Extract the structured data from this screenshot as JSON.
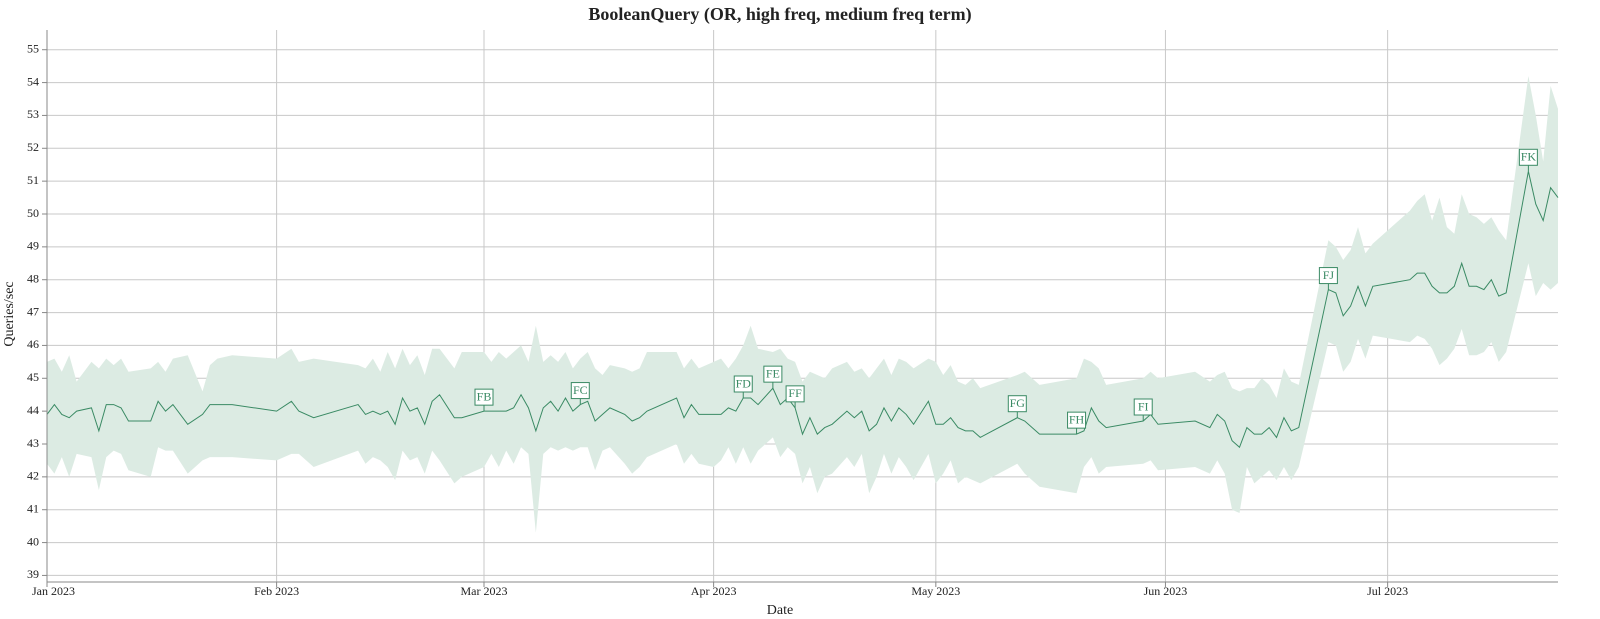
{
  "chart_data": {
    "type": "line",
    "title": "BooleanQuery (OR, high freq, medium freq term)",
    "x_label": "Date",
    "y_label": "Queries/sec",
    "xlim": [
      "2023-01-01",
      "2023-07-24"
    ],
    "xticks": [
      {
        "value": "2023-01-01",
        "label": "Jan 2023"
      },
      {
        "value": "2023-02-01",
        "label": "Feb 2023"
      },
      {
        "value": "2023-03-01",
        "label": "Mar 2023"
      },
      {
        "value": "2023-04-01",
        "label": "Apr 2023"
      },
      {
        "value": "2023-05-01",
        "label": "May 2023"
      },
      {
        "value": "2023-06-01",
        "label": "Jun 2023"
      },
      {
        "value": "2023-07-01",
        "label": "Jul 2023"
      }
    ],
    "ylim": [
      38.8,
      55.6
    ],
    "yticks": [
      39,
      40,
      41,
      42,
      43,
      44,
      45,
      46,
      47,
      48,
      49,
      50,
      51,
      52,
      53,
      54,
      55
    ],
    "grid": true,
    "x": [
      "2023-01-01",
      "2023-01-02",
      "2023-01-03",
      "2023-01-04",
      "2023-01-05",
      "2023-01-07",
      "2023-01-08",
      "2023-01-09",
      "2023-01-10",
      "2023-01-11",
      "2023-01-12",
      "2023-01-15",
      "2023-01-16",
      "2023-01-17",
      "2023-01-18",
      "2023-01-20",
      "2023-01-22",
      "2023-01-23",
      "2023-01-24",
      "2023-01-26",
      "2023-02-01",
      "2023-02-03",
      "2023-02-04",
      "2023-02-06",
      "2023-02-12",
      "2023-02-13",
      "2023-02-14",
      "2023-02-15",
      "2023-02-16",
      "2023-02-17",
      "2023-02-18",
      "2023-02-19",
      "2023-02-20",
      "2023-02-21",
      "2023-02-22",
      "2023-02-23",
      "2023-02-25",
      "2023-02-26",
      "2023-03-01",
      "2023-03-02",
      "2023-03-03",
      "2023-03-04",
      "2023-03-05",
      "2023-03-06",
      "2023-03-07",
      "2023-03-08",
      "2023-03-09",
      "2023-03-10",
      "2023-03-11",
      "2023-03-12",
      "2023-03-13",
      "2023-03-14",
      "2023-03-15",
      "2023-03-16",
      "2023-03-17",
      "2023-03-18",
      "2023-03-20",
      "2023-03-21",
      "2023-03-22",
      "2023-03-23",
      "2023-03-27",
      "2023-03-28",
      "2023-03-29",
      "2023-03-30",
      "2023-04-01",
      "2023-04-02",
      "2023-04-03",
      "2023-04-04",
      "2023-04-05",
      "2023-04-06",
      "2023-04-07",
      "2023-04-09",
      "2023-04-10",
      "2023-04-11",
      "2023-04-12",
      "2023-04-13",
      "2023-04-14",
      "2023-04-15",
      "2023-04-16",
      "2023-04-17",
      "2023-04-19",
      "2023-04-20",
      "2023-04-21",
      "2023-04-22",
      "2023-04-23",
      "2023-04-24",
      "2023-04-25",
      "2023-04-26",
      "2023-04-27",
      "2023-04-28",
      "2023-04-30",
      "2023-05-01",
      "2023-05-02",
      "2023-05-03",
      "2023-05-04",
      "2023-05-05",
      "2023-05-06",
      "2023-05-07",
      "2023-05-12",
      "2023-05-13",
      "2023-05-15",
      "2023-05-20",
      "2023-05-21",
      "2023-05-22",
      "2023-05-23",
      "2023-05-24",
      "2023-05-29",
      "2023-05-30",
      "2023-05-31",
      "2023-06-05",
      "2023-06-07",
      "2023-06-08",
      "2023-06-09",
      "2023-06-10",
      "2023-06-11",
      "2023-06-12",
      "2023-06-13",
      "2023-06-14",
      "2023-06-15",
      "2023-06-16",
      "2023-06-17",
      "2023-06-18",
      "2023-06-19",
      "2023-06-23",
      "2023-06-24",
      "2023-06-25",
      "2023-06-26",
      "2023-06-27",
      "2023-06-28",
      "2023-06-29",
      "2023-07-04",
      "2023-07-05",
      "2023-07-06",
      "2023-07-07",
      "2023-07-08",
      "2023-07-09",
      "2023-07-10",
      "2023-07-11",
      "2023-07-12",
      "2023-07-13",
      "2023-07-14",
      "2023-07-15",
      "2023-07-16",
      "2023-07-17",
      "2023-07-20",
      "2023-07-21",
      "2023-07-22",
      "2023-07-23",
      "2023-07-24"
    ],
    "series": [
      {
        "color": "#3a8a64",
        "band_color": "#dcebe3",
        "values": [
          43.9,
          44.2,
          43.9,
          43.8,
          44.0,
          44.1,
          43.4,
          44.2,
          44.2,
          44.1,
          43.7,
          43.7,
          44.3,
          44.0,
          44.2,
          43.6,
          43.9,
          44.2,
          44.2,
          44.2,
          44.0,
          44.3,
          44.0,
          43.8,
          44.2,
          43.9,
          44.0,
          43.9,
          44.0,
          43.6,
          44.4,
          44.0,
          44.1,
          43.6,
          44.3,
          44.5,
          43.8,
          43.8,
          44.0,
          44.0,
          44.0,
          44.0,
          44.1,
          44.5,
          44.1,
          43.4,
          44.1,
          44.3,
          44.0,
          44.4,
          44.0,
          44.2,
          44.3,
          43.7,
          43.9,
          44.1,
          43.9,
          43.7,
          43.8,
          44.0,
          44.4,
          43.8,
          44.2,
          43.9,
          43.9,
          43.9,
          44.1,
          44.0,
          44.4,
          44.4,
          44.2,
          44.7,
          44.2,
          44.4,
          44.1,
          43.3,
          43.8,
          43.3,
          43.5,
          43.6,
          44.0,
          43.8,
          44.0,
          43.4,
          43.6,
          44.1,
          43.7,
          44.1,
          43.9,
          43.6,
          44.3,
          43.6,
          43.6,
          43.8,
          43.5,
          43.4,
          43.4,
          43.2,
          43.8,
          43.7,
          43.3,
          43.3,
          43.4,
          44.1,
          43.7,
          43.5,
          43.7,
          43.9,
          43.6,
          43.7,
          43.5,
          43.9,
          43.7,
          43.1,
          42.9,
          43.5,
          43.3,
          43.3,
          43.5,
          43.2,
          43.8,
          43.4,
          43.5,
          47.7,
          47.6,
          46.9,
          47.2,
          47.8,
          47.2,
          47.8,
          48.0,
          48.2,
          48.2,
          47.8,
          47.6,
          47.6,
          47.8,
          48.5,
          47.8,
          47.8,
          47.7,
          48.0,
          47.5,
          47.6,
          51.3,
          50.3,
          49.8,
          50.8,
          50.5
        ],
        "lower": [
          42.4,
          42.1,
          42.6,
          42.0,
          42.7,
          42.6,
          41.6,
          42.6,
          42.8,
          42.7,
          42.2,
          42.0,
          42.9,
          42.8,
          42.8,
          42.1,
          42.5,
          42.6,
          42.6,
          42.6,
          42.5,
          42.7,
          42.7,
          42.3,
          42.8,
          42.4,
          42.6,
          42.5,
          42.3,
          41.9,
          42.8,
          42.5,
          42.6,
          42.1,
          42.8,
          42.5,
          41.8,
          42.0,
          42.3,
          42.7,
          42.3,
          42.8,
          42.4,
          42.9,
          42.7,
          40.3,
          42.7,
          42.9,
          42.8,
          42.9,
          42.8,
          42.9,
          42.9,
          42.2,
          42.8,
          42.9,
          42.4,
          42.1,
          42.3,
          42.6,
          43.0,
          42.4,
          42.7,
          42.4,
          42.3,
          42.5,
          42.9,
          42.4,
          42.9,
          42.4,
          42.8,
          43.2,
          42.6,
          42.9,
          42.7,
          41.8,
          42.3,
          41.5,
          42.0,
          42.1,
          42.6,
          42.3,
          42.7,
          41.5,
          42.0,
          42.7,
          42.1,
          42.6,
          42.3,
          41.9,
          42.7,
          41.8,
          42.1,
          42.5,
          41.8,
          42.0,
          41.9,
          41.8,
          42.4,
          42.1,
          41.7,
          41.5,
          42.3,
          42.6,
          42.1,
          42.3,
          42.4,
          42.5,
          42.2,
          42.3,
          42.1,
          42.5,
          42.1,
          41.0,
          40.9,
          42.3,
          41.8,
          42.0,
          42.2,
          41.9,
          42.3,
          41.9,
          42.3,
          46.1,
          46.0,
          45.2,
          45.5,
          46.2,
          45.6,
          46.3,
          46.1,
          46.3,
          46.2,
          45.9,
          45.4,
          45.6,
          45.9,
          46.5,
          45.7,
          45.7,
          45.8,
          46.1,
          45.5,
          45.8,
          48.5,
          47.5,
          47.9,
          47.7,
          47.9
        ],
        "upper": [
          45.5,
          45.6,
          45.2,
          45.7,
          44.9,
          45.5,
          45.3,
          45.6,
          45.4,
          45.6,
          45.2,
          45.3,
          45.5,
          45.2,
          45.6,
          45.7,
          44.6,
          45.4,
          45.6,
          45.7,
          45.6,
          45.9,
          45.5,
          45.6,
          45.4,
          45.3,
          45.6,
          45.2,
          45.8,
          45.3,
          45.9,
          45.4,
          45.7,
          45.1,
          45.9,
          45.9,
          45.3,
          45.8,
          45.8,
          45.5,
          45.8,
          45.6,
          45.8,
          46.0,
          45.5,
          46.6,
          45.5,
          45.7,
          45.5,
          45.8,
          45.3,
          45.6,
          45.8,
          45.3,
          45.1,
          45.4,
          45.3,
          45.2,
          45.3,
          45.8,
          45.8,
          45.3,
          45.6,
          45.3,
          45.5,
          45.6,
          45.3,
          45.6,
          46.0,
          46.6,
          45.9,
          45.8,
          45.9,
          45.6,
          45.5,
          44.9,
          45.2,
          45.1,
          45.0,
          45.3,
          45.5,
          45.2,
          45.3,
          45.0,
          45.3,
          45.6,
          45.1,
          45.6,
          45.5,
          45.3,
          45.6,
          45.5,
          45.1,
          45.4,
          44.9,
          44.8,
          45.0,
          44.7,
          45.1,
          45.2,
          44.8,
          45.0,
          45.6,
          45.5,
          45.3,
          44.8,
          45.0,
          45.2,
          45.0,
          45.2,
          44.9,
          45.1,
          45.2,
          44.7,
          44.6,
          44.7,
          44.7,
          45.0,
          44.8,
          44.4,
          45.3,
          44.9,
          44.8,
          49.2,
          49.0,
          48.6,
          48.9,
          49.6,
          48.8,
          49.1,
          50.1,
          50.4,
          50.6,
          49.8,
          50.5,
          49.6,
          49.4,
          50.6,
          50.0,
          49.9,
          49.7,
          49.9,
          49.5,
          49.2,
          54.2,
          53.0,
          51.6,
          53.9,
          53.2
        ]
      }
    ],
    "annotations": [
      {
        "x": "2023-03-01",
        "label": "FB"
      },
      {
        "x": "2023-03-14",
        "label": "FC"
      },
      {
        "x": "2023-04-05",
        "label": "FD"
      },
      {
        "x": "2023-04-09",
        "label": "FE"
      },
      {
        "x": "2023-04-12",
        "label": "FF"
      },
      {
        "x": "2023-05-12",
        "label": "FG"
      },
      {
        "x": "2023-05-20",
        "label": "FH"
      },
      {
        "x": "2023-05-29",
        "label": "FI"
      },
      {
        "x": "2023-06-23",
        "label": "FJ"
      },
      {
        "x": "2023-07-20",
        "label": "FK"
      }
    ]
  }
}
